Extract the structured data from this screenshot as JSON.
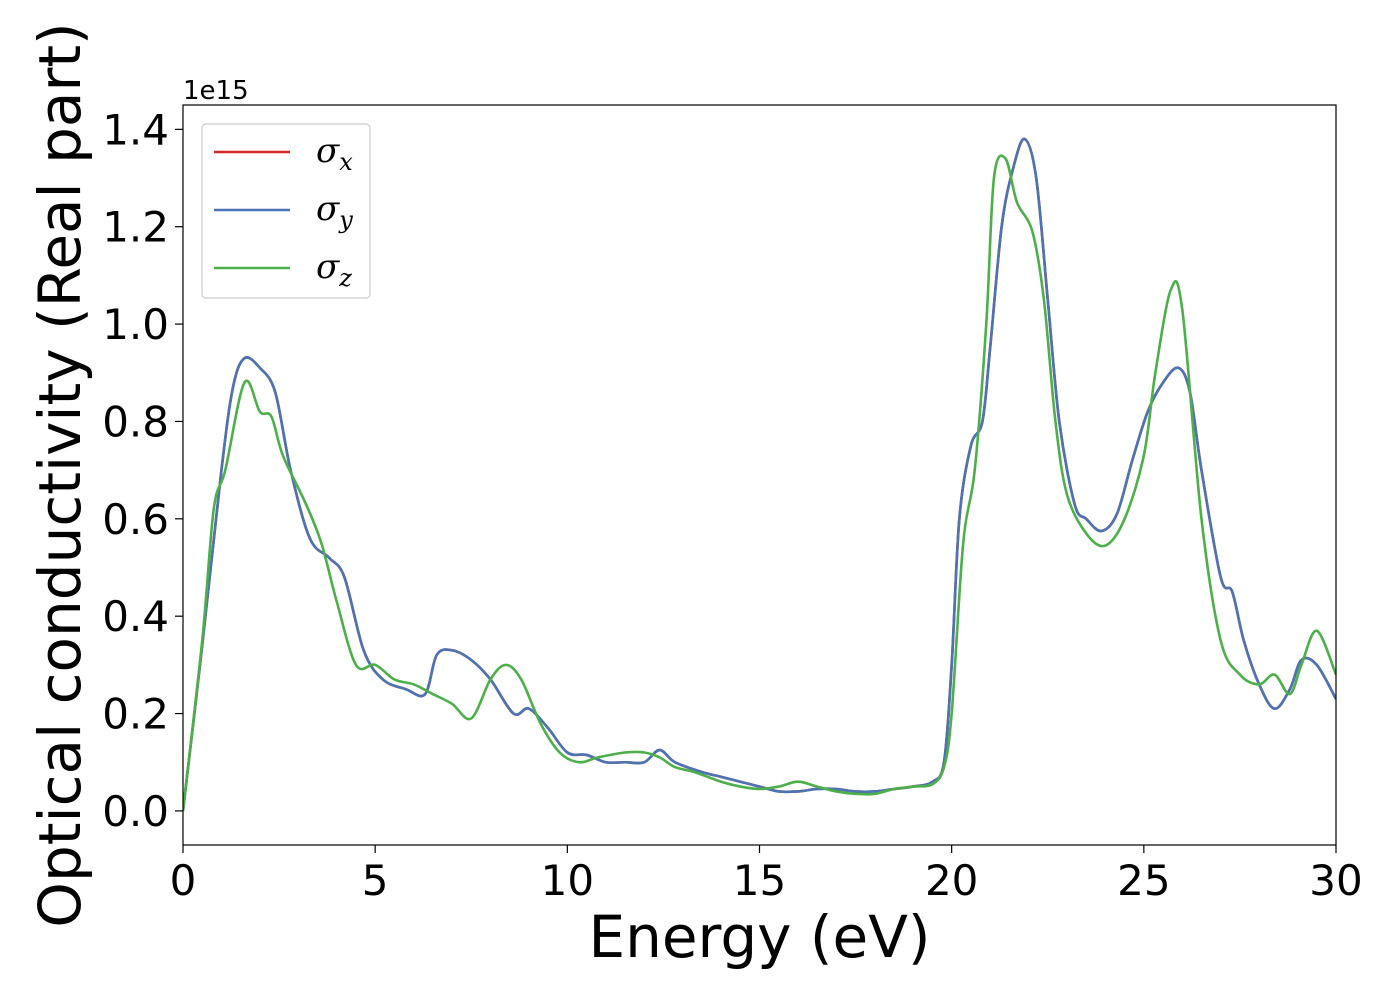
{
  "chart_data": {
    "type": "line",
    "xlabel": "Energy (eV)",
    "ylabel": "Optical conductivity (Real part)",
    "y_offset_label": "1e15",
    "xlim": [
      0,
      30
    ],
    "ylim": [
      -0.07,
      1.45
    ],
    "xticks": [
      0,
      5,
      10,
      15,
      20,
      25,
      30
    ],
    "xtick_labels": [
      "0",
      "5",
      "10",
      "15",
      "20",
      "25",
      "30"
    ],
    "yticks": [
      0.0,
      0.2,
      0.4,
      0.6,
      0.8,
      1.0,
      1.2,
      1.4
    ],
    "ytick_labels": [
      "0.0",
      "0.2",
      "0.4",
      "0.6",
      "0.8",
      "1.0",
      "1.2",
      "1.4"
    ],
    "grid": false,
    "legend_position": "top-left",
    "series": [
      {
        "name": "σx",
        "symbol": "σ",
        "subscript": "x",
        "color": "#d62728",
        "x": [
          0,
          0.5,
          1.0,
          1.3,
          1.6,
          2.0,
          2.4,
          2.8,
          3.3,
          3.8,
          4.2,
          4.7,
          5.2,
          5.8,
          6.3,
          6.6,
          7.0,
          7.5,
          8.0,
          8.6,
          9.0,
          9.5,
          10.0,
          10.5,
          11.0,
          11.5,
          12.0,
          12.4,
          12.8,
          13.5,
          14.0,
          14.5,
          15.0,
          15.5,
          16.0,
          16.5,
          17.0,
          17.5,
          18.0,
          18.5,
          19.0,
          19.5,
          19.8,
          20.0,
          20.2,
          20.5,
          20.8,
          21.0,
          21.3,
          21.6,
          21.9,
          22.2,
          22.5,
          22.8,
          23.2,
          23.5,
          23.9,
          24.3,
          24.7,
          25.1,
          25.5,
          25.9,
          26.2,
          26.5,
          27.0,
          27.3,
          27.6,
          28.0,
          28.4,
          28.8,
          29.1,
          29.5,
          30.0
        ],
        "values": [
          0.0,
          0.34,
          0.7,
          0.87,
          0.93,
          0.91,
          0.86,
          0.7,
          0.56,
          0.52,
          0.48,
          0.33,
          0.27,
          0.25,
          0.24,
          0.32,
          0.33,
          0.31,
          0.27,
          0.2,
          0.21,
          0.17,
          0.12,
          0.115,
          0.1,
          0.1,
          0.1,
          0.125,
          0.1,
          0.08,
          0.07,
          0.06,
          0.05,
          0.04,
          0.04,
          0.045,
          0.045,
          0.04,
          0.04,
          0.045,
          0.05,
          0.06,
          0.1,
          0.3,
          0.6,
          0.75,
          0.8,
          0.95,
          1.2,
          1.32,
          1.38,
          1.3,
          1.05,
          0.8,
          0.63,
          0.6,
          0.575,
          0.61,
          0.72,
          0.82,
          0.88,
          0.91,
          0.86,
          0.7,
          0.48,
          0.45,
          0.35,
          0.26,
          0.21,
          0.25,
          0.31,
          0.3,
          0.23
        ]
      },
      {
        "name": "σy",
        "symbol": "σ",
        "subscript": "y",
        "color": "#4a74b4",
        "x": [
          0,
          0.5,
          1.0,
          1.3,
          1.6,
          2.0,
          2.4,
          2.8,
          3.3,
          3.8,
          4.2,
          4.7,
          5.2,
          5.8,
          6.3,
          6.6,
          7.0,
          7.5,
          8.0,
          8.6,
          9.0,
          9.5,
          10.0,
          10.5,
          11.0,
          11.5,
          12.0,
          12.4,
          12.8,
          13.5,
          14.0,
          14.5,
          15.0,
          15.5,
          16.0,
          16.5,
          17.0,
          17.5,
          18.0,
          18.5,
          19.0,
          19.5,
          19.8,
          20.0,
          20.2,
          20.5,
          20.8,
          21.0,
          21.3,
          21.6,
          21.9,
          22.2,
          22.5,
          22.8,
          23.2,
          23.5,
          23.9,
          24.3,
          24.7,
          25.1,
          25.5,
          25.9,
          26.2,
          26.5,
          27.0,
          27.3,
          27.6,
          28.0,
          28.4,
          28.8,
          29.1,
          29.5,
          30.0
        ],
        "values": [
          0.0,
          0.34,
          0.7,
          0.87,
          0.93,
          0.91,
          0.86,
          0.7,
          0.56,
          0.52,
          0.48,
          0.33,
          0.27,
          0.25,
          0.24,
          0.32,
          0.33,
          0.31,
          0.27,
          0.2,
          0.21,
          0.17,
          0.12,
          0.115,
          0.1,
          0.1,
          0.1,
          0.125,
          0.1,
          0.08,
          0.07,
          0.06,
          0.05,
          0.04,
          0.04,
          0.045,
          0.045,
          0.04,
          0.04,
          0.045,
          0.05,
          0.06,
          0.1,
          0.3,
          0.6,
          0.75,
          0.8,
          0.95,
          1.2,
          1.32,
          1.38,
          1.3,
          1.05,
          0.8,
          0.63,
          0.6,
          0.575,
          0.61,
          0.72,
          0.82,
          0.88,
          0.91,
          0.86,
          0.7,
          0.48,
          0.45,
          0.35,
          0.26,
          0.21,
          0.25,
          0.31,
          0.3,
          0.23
        ]
      },
      {
        "name": "σz",
        "symbol": "σ",
        "subscript": "z",
        "color": "#4daf4a",
        "x": [
          0,
          0.5,
          0.8,
          1.1,
          1.6,
          2.0,
          2.3,
          2.6,
          3.2,
          3.6,
          4.0,
          4.5,
          5.0,
          5.5,
          6.0,
          6.5,
          7.0,
          7.5,
          8.0,
          8.4,
          8.8,
          9.3,
          9.8,
          10.3,
          10.8,
          11.5,
          12.0,
          12.4,
          12.8,
          13.3,
          14.0,
          14.5,
          15.0,
          15.5,
          16.0,
          16.5,
          17.0,
          17.5,
          18.0,
          18.5,
          19.0,
          19.5,
          19.8,
          20.0,
          20.3,
          20.6,
          20.9,
          21.1,
          21.4,
          21.7,
          22.1,
          22.4,
          22.7,
          23.0,
          23.5,
          24.0,
          24.5,
          25.0,
          25.3,
          25.7,
          26.0,
          26.5,
          27.0,
          27.5,
          28.0,
          28.4,
          28.8,
          29.1,
          29.5,
          30.0
        ],
        "values": [
          0.0,
          0.35,
          0.62,
          0.7,
          0.88,
          0.82,
          0.81,
          0.73,
          0.63,
          0.55,
          0.43,
          0.3,
          0.3,
          0.27,
          0.26,
          0.24,
          0.22,
          0.19,
          0.27,
          0.3,
          0.27,
          0.18,
          0.12,
          0.1,
          0.11,
          0.12,
          0.12,
          0.11,
          0.09,
          0.08,
          0.06,
          0.05,
          0.045,
          0.05,
          0.06,
          0.05,
          0.04,
          0.035,
          0.035,
          0.045,
          0.05,
          0.055,
          0.09,
          0.2,
          0.55,
          0.7,
          1.0,
          1.3,
          1.34,
          1.25,
          1.19,
          1.05,
          0.8,
          0.65,
          0.57,
          0.545,
          0.6,
          0.73,
          0.9,
          1.07,
          1.03,
          0.6,
          0.35,
          0.28,
          0.26,
          0.28,
          0.24,
          0.3,
          0.37,
          0.28
        ]
      }
    ]
  }
}
